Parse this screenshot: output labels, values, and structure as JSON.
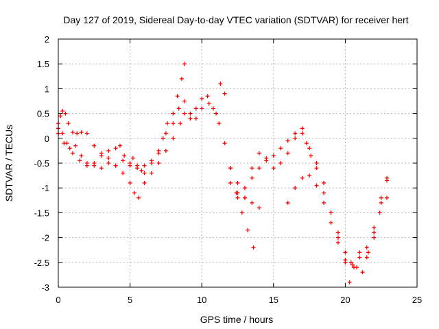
{
  "chart_data": {
    "type": "scatter",
    "title": "Day 127 of 2019, Sidereal Day-to-day VTEC variation (SDTVAR) for receiver hert",
    "xlabel": "GPS time / hours",
    "ylabel": "SDTVAR / TECUs",
    "xlim": [
      0,
      25
    ],
    "ylim": [
      -3,
      2
    ],
    "xticks": [
      0,
      5,
      10,
      15,
      20,
      25
    ],
    "xtick_labels": [
      "0",
      "5",
      "10",
      "15",
      "20",
      "25"
    ],
    "yticks": [
      -3,
      -2.5,
      -2,
      -1.5,
      -1,
      -0.5,
      0,
      0.5,
      1,
      1.5,
      2
    ],
    "ytick_labels": [
      "-3",
      "-2.5",
      "-2",
      "-1.5",
      "-1",
      "-0.5",
      "0",
      "0.5",
      "1",
      "1.5",
      "2"
    ],
    "grid": true,
    "marker": "plus",
    "marker_color": "#ff0000",
    "series": [
      {
        "x": [
          0.0,
          0.15,
          0.3,
          0.5,
          0.7,
          1.0,
          1.3,
          1.6,
          2.0,
          2.5,
          3.0,
          3.5,
          4.0,
          4.3,
          4.6,
          5.0,
          5.2,
          5.5,
          5.8,
          6.0,
          6.5,
          7.0,
          7.3,
          7.6,
          8.0,
          8.3,
          8.6,
          8.8
        ],
        "y": [
          0.2,
          0.45,
          0.55,
          0.5,
          0.3,
          0.12,
          0.1,
          0.12,
          0.1,
          -0.15,
          -0.3,
          -0.25,
          -0.2,
          -0.15,
          -0.35,
          -0.55,
          -0.4,
          -0.55,
          -0.65,
          -0.55,
          -0.45,
          -0.3,
          0.0,
          0.3,
          0.5,
          0.85,
          1.2,
          1.5
        ]
      },
      {
        "x": [
          0.0,
          0.3,
          0.6,
          1.0,
          1.5,
          2.0,
          2.5,
          3.0,
          3.5,
          4.0,
          4.5,
          5.0,
          5.3,
          5.6,
          6.0,
          6.5,
          7.0,
          7.5,
          8.0,
          8.5,
          8.8,
          9.2,
          9.6,
          10.0,
          10.4,
          10.8,
          11.2,
          11.6,
          12.0,
          12.4,
          12.8,
          13.2,
          13.6
        ],
        "y": [
          0.3,
          0.1,
          -0.1,
          -0.3,
          -0.45,
          -0.55,
          -0.5,
          -0.35,
          -0.4,
          -0.55,
          -0.7,
          -0.9,
          -1.1,
          -1.2,
          -0.9,
          -0.7,
          -0.5,
          -0.25,
          0.0,
          0.3,
          0.5,
          0.4,
          0.6,
          0.8,
          0.85,
          0.6,
          0.3,
          -0.1,
          -0.6,
          -1.1,
          -1.5,
          -1.85,
          -2.2
        ]
      },
      {
        "x": [
          0.0,
          0.4,
          0.8,
          1.2,
          1.6,
          2.0,
          2.5,
          3.0,
          3.5,
          4.0,
          4.5,
          5.0,
          5.5,
          6.0,
          6.5,
          7.0,
          7.5,
          8.0,
          8.4,
          8.8,
          9.2,
          9.6,
          10.0,
          10.5,
          11.0,
          11.3,
          11.6,
          12.0,
          12.5,
          13.0,
          13.5,
          14.0
        ],
        "y": [
          0.1,
          -0.1,
          -0.2,
          -0.15,
          -0.35,
          -0.5,
          -0.55,
          -0.6,
          -0.5,
          -0.55,
          -0.45,
          -0.5,
          -0.6,
          -0.7,
          -0.5,
          -0.25,
          0.1,
          0.3,
          0.6,
          0.75,
          0.5,
          0.4,
          0.6,
          0.7,
          0.5,
          1.1,
          0.9,
          -0.6,
          -0.9,
          -1.2,
          -1.3,
          -1.4
        ]
      },
      {
        "x": [
          12.0,
          12.5,
          13.0,
          13.5,
          14.0,
          14.5,
          15.0,
          15.5,
          16.0,
          16.5,
          17.0,
          17.5,
          18.0,
          18.5,
          19.0,
          19.5,
          20.0,
          20.3,
          20.6,
          21.0,
          21.5,
          22.0,
          22.5,
          22.9
        ],
        "y": [
          -0.9,
          -1.1,
          -1.2,
          -0.8,
          -0.6,
          -0.4,
          -0.35,
          -0.2,
          -0.05,
          0.1,
          0.2,
          -0.2,
          -0.5,
          -0.9,
          -1.5,
          -2.0,
          -2.5,
          -2.9,
          -2.6,
          -2.3,
          -2.4,
          -2.0,
          -1.2,
          -0.8
        ]
      },
      {
        "x": [
          12.5,
          13.0,
          13.5,
          14.0,
          14.5,
          15.0,
          15.5,
          16.0,
          16.5,
          17.0,
          17.3,
          17.6,
          18.0,
          18.5,
          19.0,
          19.5,
          20.0,
          20.4,
          20.8,
          21.2,
          21.6,
          22.0,
          22.4,
          22.9
        ],
        "y": [
          -1.2,
          -1.0,
          -0.6,
          -0.3,
          -0.45,
          -0.6,
          -0.5,
          -0.3,
          0.0,
          0.1,
          -0.1,
          -0.35,
          -0.6,
          -1.1,
          -1.5,
          -1.9,
          -2.3,
          -2.5,
          -2.6,
          -2.7,
          -2.3,
          -1.9,
          -1.5,
          -1.2
        ]
      },
      {
        "x": [
          16.0,
          16.5,
          17.0,
          17.5,
          18.0,
          18.5,
          19.0,
          19.5,
          20.0,
          20.5,
          21.0,
          21.5,
          22.0,
          22.5,
          22.9
        ],
        "y": [
          -1.3,
          -1.0,
          -0.8,
          -0.75,
          -0.95,
          -1.3,
          -1.7,
          -2.1,
          -2.45,
          -2.55,
          -2.4,
          -2.2,
          -1.8,
          -1.3,
          -0.85
        ]
      }
    ]
  }
}
